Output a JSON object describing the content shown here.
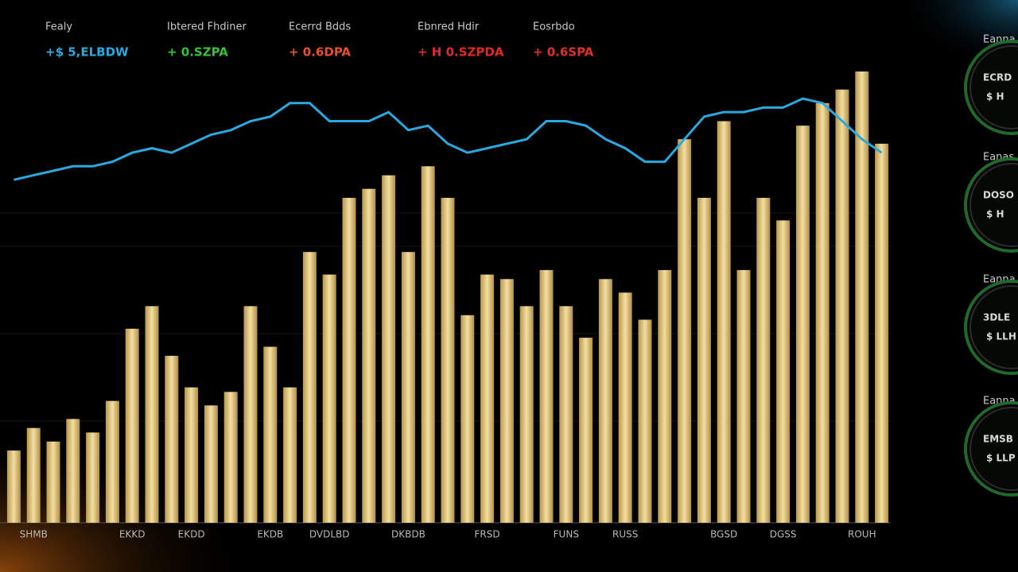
{
  "header": {
    "stats": [
      {
        "label": "Fealy",
        "value": "+$ 5,ELBDW",
        "color": "#2aa8e0"
      },
      {
        "label": "Ibtered Fhdiner",
        "value": "+ 0.SZPA",
        "color": "#35c13a"
      },
      {
        "label": "Ecerrd Bdds",
        "value": "+ 0.6DPA",
        "color": "#e8502a"
      },
      {
        "label": "Ebnred Hdir",
        "value": "+ H 0.SZPDA",
        "color": "#e02a2a"
      },
      {
        "label": "Eosrbdo",
        "value": "+ 0.6SPA",
        "color": "#e0302a"
      }
    ]
  },
  "chart_data": {
    "type": "bar",
    "categories": [
      null,
      "SHMB",
      null,
      null,
      null,
      null,
      "EKKD",
      null,
      null,
      "EKDD",
      null,
      null,
      null,
      "EKDB",
      null,
      null,
      "DVDLBD",
      null,
      null,
      null,
      "DKBDB",
      null,
      null,
      null,
      "FRSD",
      null,
      null,
      null,
      "FUNS",
      null,
      null,
      "RUSS",
      null,
      null,
      null,
      null,
      "BGSD",
      null,
      null,
      "DGSS",
      null,
      null,
      null,
      "ROUH",
      null
    ],
    "values": [
      16,
      21,
      18,
      23,
      20,
      27,
      43,
      48,
      37,
      30,
      26,
      29,
      48,
      39,
      30,
      60,
      55,
      72,
      74,
      77,
      60,
      79,
      72,
      46,
      55,
      54,
      48,
      56,
      48,
      41,
      54,
      51,
      45,
      56,
      85,
      72,
      89,
      56,
      72,
      67,
      88,
      93,
      96,
      100,
      84
    ],
    "color": "#e6c878",
    "line": {
      "color": "#2aa8e0",
      "values": [
        76,
        77,
        78,
        79,
        79,
        80,
        82,
        83,
        82,
        84,
        86,
        87,
        89,
        90,
        93,
        93,
        89,
        89,
        89,
        91,
        87,
        88,
        84,
        82,
        83,
        84,
        85,
        89,
        89,
        88,
        85,
        83,
        80,
        80,
        85,
        90,
        91,
        91,
        92,
        92,
        94,
        93,
        89,
        85,
        82
      ]
    },
    "ylim": [
      0,
      100
    ]
  },
  "gauges": [
    {
      "title": "Eanna",
      "line1": "ECRD",
      "line2": "$ H"
    },
    {
      "title": "Eanas",
      "line1": "DOSO",
      "line2": "$ H"
    },
    {
      "title": "Eanna",
      "line1": "3DLE",
      "line2": "$ LLH"
    },
    {
      "title": "Eanna",
      "line1": "EMSB",
      "line2": "$ LLP"
    }
  ]
}
